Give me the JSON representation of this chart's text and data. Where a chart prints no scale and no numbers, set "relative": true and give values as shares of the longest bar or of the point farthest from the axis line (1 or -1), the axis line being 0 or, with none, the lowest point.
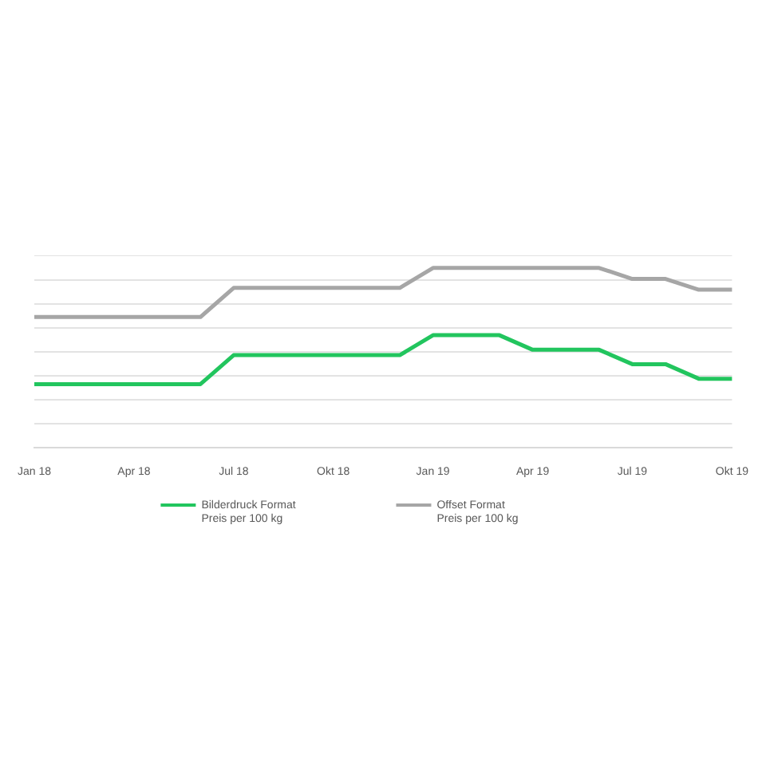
{
  "chart_data": {
    "type": "line",
    "relative": true,
    "categories": [
      "Jan 18",
      null,
      null,
      "Apr 18",
      null,
      null,
      "Jul 18",
      null,
      null,
      "Okt 18",
      null,
      null,
      "Jan 19",
      null,
      null,
      "Apr 19",
      null,
      null,
      "Jul 19",
      null,
      null,
      "Okt 19"
    ],
    "series": [
      {
        "name": "Bilderdruck Format\nPreis per 100 kg",
        "color": "#22c55e",
        "values": [
          0.354,
          0.354,
          0.354,
          0.354,
          0.354,
          0.354,
          0.515,
          0.515,
          0.515,
          0.515,
          0.515,
          0.515,
          0.626,
          0.626,
          0.626,
          0.545,
          0.545,
          0.545,
          0.465,
          0.465,
          0.384,
          0.384
        ]
      },
      {
        "name": "Offset Format\nPreis per 100 kg",
        "color": "#a6a6a6",
        "values": [
          0.727,
          0.727,
          0.727,
          0.727,
          0.727,
          0.727,
          0.889,
          0.889,
          0.889,
          0.889,
          0.889,
          0.889,
          1.0,
          1.0,
          1.0,
          1.0,
          1.0,
          1.0,
          0.939,
          0.939,
          0.879,
          0.879
        ]
      }
    ],
    "grid": "y",
    "legend": "bottom",
    "marker": "none",
    "line_style": "solid"
  }
}
